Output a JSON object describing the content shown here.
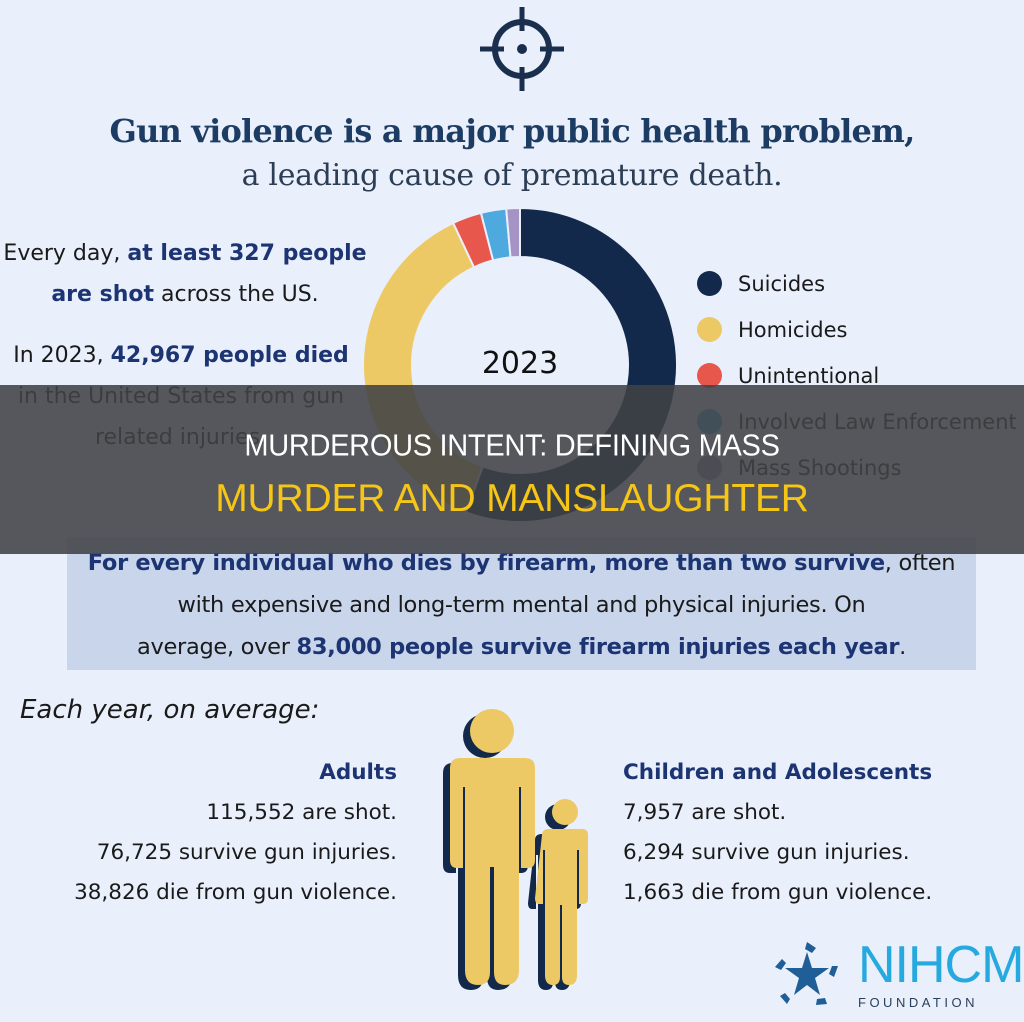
{
  "header": {
    "icon": "crosshair-icon",
    "title": "Gun violence is a major public health problem,",
    "subtitle": "a leading cause of premature death."
  },
  "stats": {
    "daily": {
      "prefix": "Every day, ",
      "highlight1": "at least 327 people",
      "highlight2": "are shot",
      "suffix": " across the US."
    },
    "yearly": {
      "prefix": "In 2023, ",
      "highlight": "42,967 people died",
      "line2": "in the United States from gun",
      "line3": "related injuries."
    }
  },
  "chart_data": {
    "type": "pie",
    "title": "2023",
    "center_label": "2023",
    "categories": [
      "Suicides",
      "Homicides",
      "Unintentional",
      "Involved Law Enforcement",
      "Mass Shootings"
    ],
    "values": [
      55.6,
      37.4,
      3.0,
      2.6,
      1.4
    ],
    "unit": "percent (estimated from arc lengths)",
    "colors": [
      "#12294b",
      "#edc966",
      "#e8574c",
      "#4ea9df",
      "#a693c6"
    ],
    "legend_position": "right",
    "donut": true
  },
  "legend": {
    "items": [
      {
        "label": "Suicides",
        "color": "#12294b"
      },
      {
        "label": "Homicides",
        "color": "#edc966"
      },
      {
        "label": "Unintentional",
        "color": "#e8574c"
      },
      {
        "label": "Involved Law Enforcement",
        "color": "#4ea9df"
      },
      {
        "label": "Mass Shootings",
        "color": "#a693c6"
      }
    ]
  },
  "survive": {
    "hl1": "For every individual who dies by firearm, more than two survive",
    "t1": ", often",
    "line2": "with expensive and long-term mental and physical injuries. On",
    "t3": "average, over ",
    "hl3": "83,000 people survive firearm injuries each year",
    "end": "."
  },
  "each_year": "Each year, on average:",
  "adults": {
    "title": "Adults",
    "lines": [
      "115,552 are shot.",
      "76,725 survive gun injuries.",
      "38,826 die from gun violence."
    ]
  },
  "children": {
    "title": "Children and Adolescents",
    "lines": [
      "7,957 are shot.",
      "6,294 survive gun injuries.",
      "1,663 die from gun violence."
    ]
  },
  "banner": {
    "line1": "MURDEROUS INTENT: DEFINING MASS",
    "line2": "MURDER AND MANSLAUGHTER"
  },
  "logo": {
    "name": "NIHCM",
    "sub": "FOUNDATION"
  },
  "colors": {
    "background": "#e9effb",
    "navy": "#1d3473",
    "accent_yellow": "#edc966",
    "banner_yellow": "#f5c518"
  }
}
